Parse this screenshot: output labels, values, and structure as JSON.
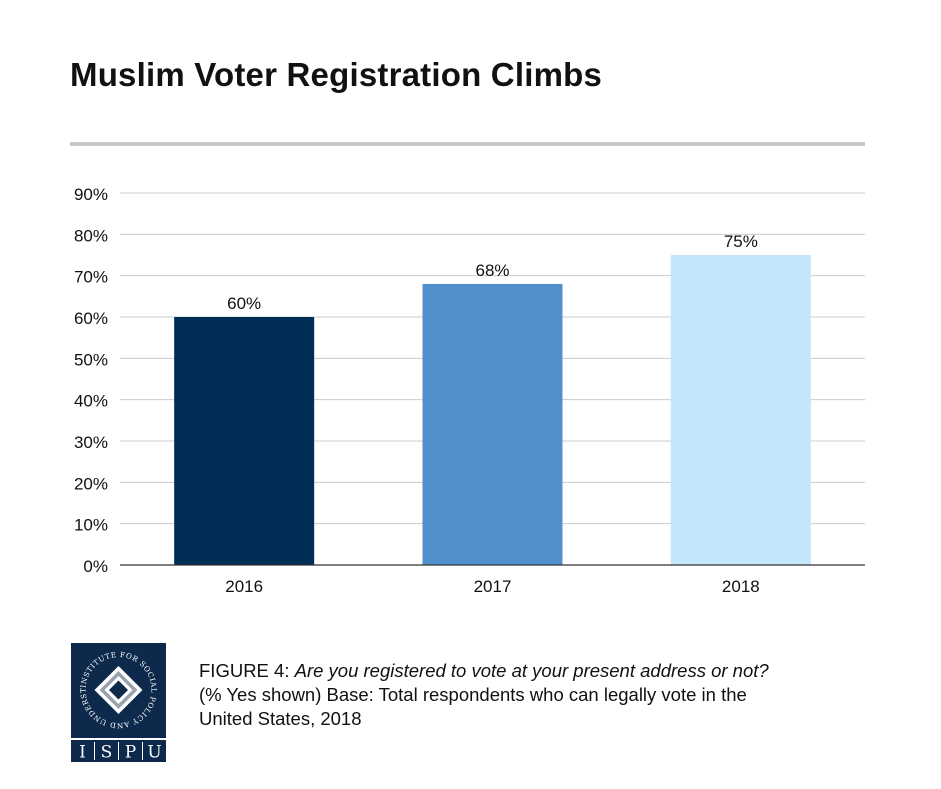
{
  "chart_data": {
    "type": "bar",
    "title": "Muslim Voter Registration Climbs",
    "categories": [
      "2016",
      "2017",
      "2018"
    ],
    "values": [
      60,
      68,
      75
    ],
    "value_labels": [
      "60%",
      "68%",
      "75%"
    ],
    "bar_colors": [
      "#002d55",
      "#5091cd",
      "#c3e6fa"
    ],
    "yticks": [
      0,
      10,
      20,
      30,
      40,
      50,
      60,
      70,
      80,
      90
    ],
    "ytick_labels": [
      "0%",
      "10%",
      "20%",
      "30%",
      "40%",
      "50%",
      "60%",
      "70%",
      "80%",
      "90%"
    ],
    "ylim": [
      0,
      90
    ],
    "xlabel": "",
    "ylabel": "",
    "grid": true,
    "legend": "none"
  },
  "caption": {
    "figure_label": "FIGURE 4",
    "separator": ": ",
    "question": "Are you registered to vote at your present address or not?",
    "line2": "(% Yes shown) Base: Total respondents who can legally vote in the",
    "line3": "United States, 2018"
  },
  "logo": {
    "ring_text": "INSTITUTE FOR SOCIAL POLICY AND UNDERSTANDING",
    "letters": [
      "I",
      "S",
      "P",
      "U"
    ],
    "colors": {
      "navy": "#0d2a4d",
      "silver": "#9aa3ae",
      "white": "#ffffff"
    }
  },
  "colors": {
    "gridline": "#cccccc",
    "axis": "#333333",
    "title_rule": "#c8c8c8",
    "text": "#111111"
  }
}
